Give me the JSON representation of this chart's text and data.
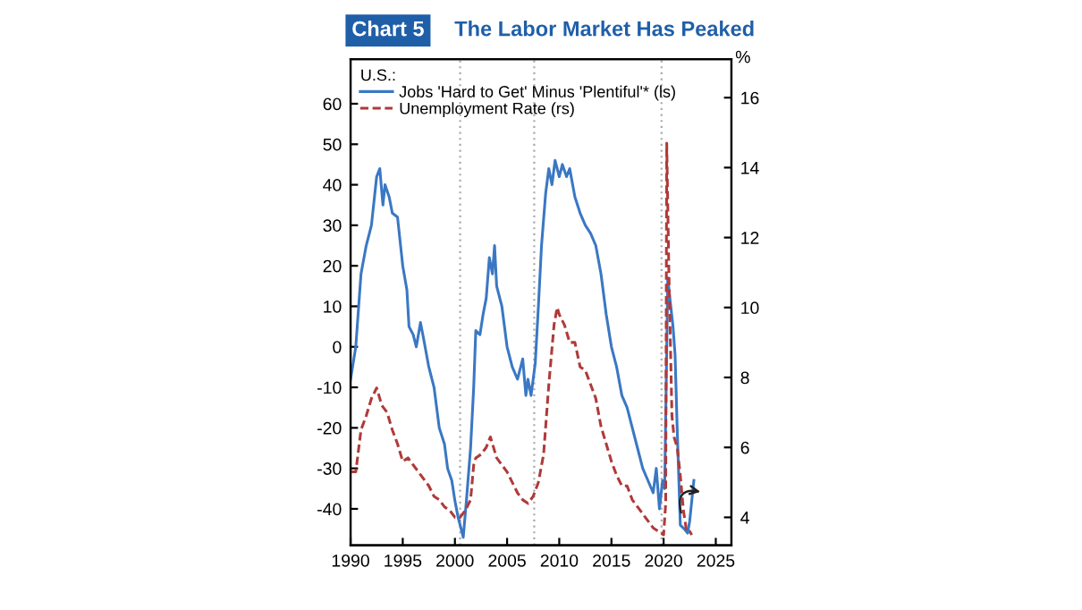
{
  "chart_data": {
    "type": "line",
    "title": "The Labor Market Has Peaked",
    "annotations": [
      "Chart 5"
    ],
    "legend_title": "U.S.:",
    "y2label": "%",
    "xlim": [
      1990,
      2026.5
    ],
    "xticks": [
      1990,
      1995,
      2000,
      2005,
      2010,
      2015,
      2020,
      2025
    ],
    "ylim": [
      -49,
      71
    ],
    "yticks": [
      -40,
      -30,
      -20,
      -10,
      0,
      10,
      20,
      30,
      40,
      50,
      60
    ],
    "y2lim": [
      3.2,
      17.1
    ],
    "y2ticks": [
      4,
      6,
      8,
      10,
      12,
      14,
      16
    ],
    "legend": "top left",
    "grid": false,
    "ref_lines": [
      {
        "axis": "x",
        "value": 2000.5,
        "color": "#aaaaaa",
        "line_style": "dotted"
      },
      {
        "axis": "x",
        "value": 2007.6,
        "color": "#aaaaaa",
        "line_style": "dotted"
      },
      {
        "axis": "x",
        "value": 2019.8,
        "color": "#aaaaaa",
        "line_style": "dotted"
      }
    ],
    "series": [
      {
        "name": "Jobs 'Hard to Get' Minus 'Plentiful'* (ls)",
        "color": "#3a78c3",
        "line_style": "solid",
        "axis": "y",
        "x": [
          1990.0,
          1990.5,
          1991,
          1991.5,
          1992,
          1992.5,
          1992.8,
          1993.1,
          1993.3,
          1993.7,
          1994,
          1994.5,
          1995,
          1995.4,
          1995.6,
          1996,
          1996.3,
          1996.7,
          1997,
          1997.5,
          1998,
          1998.5,
          1999,
          1999.3,
          1999.7,
          2000,
          2000.3,
          2000.6,
          2000.8,
          2001.1,
          2001.5,
          2001.8,
          2002,
          2002.4,
          2002.7,
          2003,
          2003.3,
          2003.6,
          2003.8,
          2004,
          2004.5,
          2005,
          2005.5,
          2006,
          2006.5,
          2006.8,
          2007,
          2007.3,
          2007.7,
          2008,
          2008.3,
          2008.7,
          2009,
          2009.3,
          2009.6,
          2010,
          2010.3,
          2010.7,
          2011,
          2011.5,
          2012,
          2012.5,
          2013,
          2013.5,
          2014,
          2014.5,
          2015,
          2015.5,
          2016,
          2016.5,
          2017,
          2017.5,
          2018,
          2018.5,
          2019,
          2019.3,
          2019.6,
          2019.9,
          2020.1,
          2020.4,
          2020.6,
          2020.9,
          2021.1,
          2021.3,
          2021.6,
          2022.0,
          2022.3,
          2022.5,
          2022.7,
          2022.9
        ],
        "values": [
          -8,
          0,
          18,
          25,
          30,
          42,
          44,
          35,
          40,
          37,
          33,
          32,
          20,
          14,
          5,
          3,
          0,
          6,
          2,
          -5,
          -10,
          -20,
          -24,
          -30,
          -33,
          -38,
          -42,
          -45,
          -47,
          -38,
          -25,
          -10,
          4,
          3,
          8,
          12,
          22,
          18,
          25,
          15,
          10,
          0,
          -5,
          -8,
          -3,
          -12,
          -8,
          -12,
          -4,
          10,
          25,
          38,
          44,
          40,
          46,
          42,
          45,
          42,
          44,
          37,
          33,
          30,
          28,
          25,
          18,
          8,
          0,
          -5,
          -12,
          -15,
          -20,
          -25,
          -30,
          -33,
          -36,
          -30,
          -40,
          -33,
          -35,
          17,
          12,
          5,
          -2,
          -20,
          -44,
          -45,
          -46,
          -43,
          -38,
          -33
        ]
      },
      {
        "name": "Unemployment Rate (rs)",
        "color": "#b03a3a",
        "line_style": "dashed",
        "axis": "y2",
        "x": [
          1990,
          1990.5,
          1991,
          1991.5,
          1992,
          1992.5,
          1993,
          1993.5,
          1994,
          1994.5,
          1995,
          1995.5,
          1996,
          1996.5,
          1997,
          1997.5,
          1998,
          1998.5,
          1999,
          1999.5,
          2000,
          2000.5,
          2001,
          2001.5,
          2001.8,
          2002,
          2002.5,
          2003,
          2003.4,
          2003.8,
          2004,
          2004.5,
          2005,
          2005.5,
          2006,
          2006.5,
          2007,
          2007.5,
          2008,
          2008.5,
          2009,
          2009.5,
          2009.8,
          2010,
          2010.5,
          2011,
          2011.5,
          2012,
          2012.5,
          2013,
          2013.5,
          2014,
          2014.5,
          2015,
          2015.5,
          2016,
          2016.5,
          2017,
          2017.5,
          2018,
          2018.5,
          2019,
          2019.5,
          2020.0,
          2020.2,
          2020.3,
          2020.5,
          2020.8,
          2021,
          2021.3,
          2021.6,
          2021.9,
          2022.2,
          2022.5,
          2022.7
        ],
        "values": [
          5.3,
          5.3,
          6.5,
          6.9,
          7.4,
          7.7,
          7.2,
          7.0,
          6.5,
          6.1,
          5.6,
          5.7,
          5.5,
          5.3,
          5.1,
          4.9,
          4.6,
          4.5,
          4.3,
          4.2,
          4.0,
          4.0,
          4.2,
          4.5,
          5.5,
          5.7,
          5.8,
          6.0,
          6.3,
          5.9,
          5.7,
          5.5,
          5.3,
          5.0,
          4.7,
          4.5,
          4.4,
          4.6,
          5.0,
          5.8,
          7.8,
          9.5,
          10.0,
          9.8,
          9.5,
          9.0,
          9.0,
          8.3,
          8.2,
          7.8,
          7.4,
          6.6,
          6.1,
          5.6,
          5.2,
          4.9,
          4.9,
          4.5,
          4.3,
          4.1,
          3.9,
          3.7,
          3.6,
          3.5,
          4.4,
          14.7,
          11.1,
          6.9,
          6.3,
          6.0,
          5.2,
          4.2,
          3.6,
          3.6,
          3.5
        ]
      }
    ]
  }
}
